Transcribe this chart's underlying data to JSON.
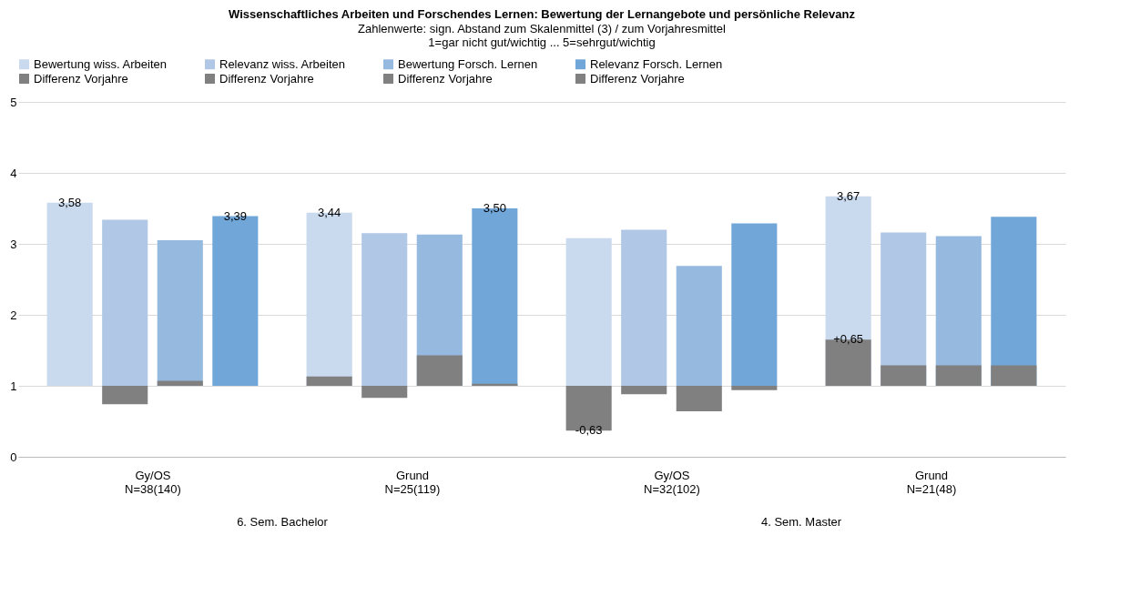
{
  "chart_data": {
    "type": "bar",
    "title": "Wissenschaftliches Arbeiten und Forschendes Lernen: Bewertung der Lernangebote und persönliche Relevanz",
    "subtitle": "Zahlenwerte: sign. Abstand zum Skalenmittel (3) / zum Vorjahresmittel\n1=gar nicht gut/wichtig ... 5=sehrgut/wichtig",
    "categories": [
      "Gy/OS\nN=38(140)",
      "Grund\nN=25(119)",
      "Gy/OS\nN=32(102)",
      "Grund\nN=21(48)"
    ],
    "annotations": [
      "6. Sem. Bachelor",
      "4. Sem. Master"
    ],
    "ylim": [
      0,
      5
    ],
    "yticks": [
      0,
      1,
      2,
      3,
      4,
      5
    ],
    "grid": "y",
    "legend": "top",
    "series": [
      {
        "name": "Bewertung wiss. Arbeiten",
        "color": "#c9d9ee",
        "base": [
          1,
          1,
          1,
          1
        ],
        "values": [
          2.58,
          2.44,
          2.08,
          2.67
        ],
        "value_labels": [
          "3,58",
          "3,44",
          null,
          "3,67"
        ]
      },
      {
        "name": "Relevanz wiss. Arbeiten",
        "color": "#b0c7e5",
        "base": [
          1,
          1,
          1,
          1
        ],
        "values": [
          2.34,
          2.15,
          2.2,
          2.16
        ]
      },
      {
        "name": "Bewertung Forsch. Lernen",
        "color": "#96b9e0",
        "base": [
          1,
          1,
          1,
          1
        ],
        "values": [
          2.05,
          2.13,
          1.69,
          2.11
        ]
      },
      {
        "name": "Relevanz Forsch. Lernen",
        "color": "#71a6d9",
        "base": [
          1,
          1,
          1,
          1
        ],
        "values": [
          2.39,
          2.5,
          2.29,
          2.38
        ],
        "value_labels": [
          "3,39",
          "3,50",
          null,
          null
        ]
      },
      {
        "name": "Differenz Vorjahre",
        "color": "#808080",
        "base": [
          null,
          1,
          1,
          1
        ],
        "values": [
          null,
          0.13,
          -0.63,
          0.65
        ],
        "value_labels": [
          null,
          null,
          "-0,63",
          "+0,65"
        ]
      },
      {
        "name": "Differenz Vorjahre",
        "color": "#808080",
        "base": [
          1,
          1,
          1,
          1
        ],
        "values": [
          -0.26,
          -0.17,
          -0.12,
          0.29
        ]
      },
      {
        "name": "Differenz Vorjahre",
        "color": "#808080",
        "base": [
          1,
          1,
          1,
          1
        ],
        "values": [
          0.07,
          0.43,
          -0.36,
          0.29
        ]
      },
      {
        "name": "Differenz Vorjahre",
        "color": "#808080",
        "base": [
          null,
          1,
          1,
          1
        ],
        "values": [
          null,
          0.03,
          -0.06,
          0.29
        ]
      }
    ]
  }
}
